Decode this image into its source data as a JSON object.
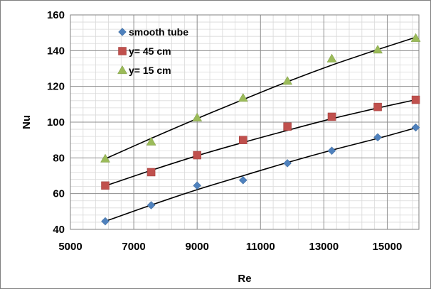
{
  "chart_data": {
    "type": "scatter",
    "title": "",
    "xlabel": "Re",
    "ylabel": "Nu",
    "xlim": [
      5000,
      16000
    ],
    "ylim": [
      40,
      160
    ],
    "xticks": [
      5000,
      7000,
      9000,
      11000,
      13000,
      15000
    ],
    "yticks": [
      40,
      60,
      80,
      100,
      120,
      140,
      160
    ],
    "grid": true,
    "legend_position": "top-left",
    "series": [
      {
        "name": "smooth tube",
        "marker": "diamond",
        "color": "#4f81bd",
        "x": [
          6100,
          7550,
          9000,
          10450,
          11850,
          13250,
          14700,
          15900
        ],
        "y": [
          44.5,
          53.5,
          64.5,
          67.5,
          77,
          84,
          91.5,
          97
        ],
        "trend": [
          44.5,
          53.6,
          62.2,
          70.0,
          77.4,
          84.3,
          90.9,
          96.8
        ]
      },
      {
        "name": "y= 45 cm",
        "marker": "square",
        "color": "#c0504d",
        "x": [
          6100,
          7550,
          9000,
          10450,
          11850,
          13250,
          14700,
          15900
        ],
        "y": [
          64.5,
          72,
          81.5,
          90,
          97.5,
          103,
          108.5,
          112.5
        ],
        "trend": [
          64.3,
          73.0,
          81.2,
          88.6,
          95.4,
          101.9,
          107.9,
          112.5
        ]
      },
      {
        "name": "y= 15 cm",
        "marker": "triangle",
        "color": "#9bbb59",
        "x": [
          6100,
          7550,
          9000,
          10450,
          11850,
          13250,
          14700,
          15900
        ],
        "y": [
          79.5,
          89,
          102.5,
          113.5,
          123,
          135.5,
          140.5,
          147
        ],
        "trend": [
          79.5,
          90.9,
          102.0,
          112.6,
          122.6,
          131.9,
          140.6,
          147.5
        ]
      }
    ]
  }
}
